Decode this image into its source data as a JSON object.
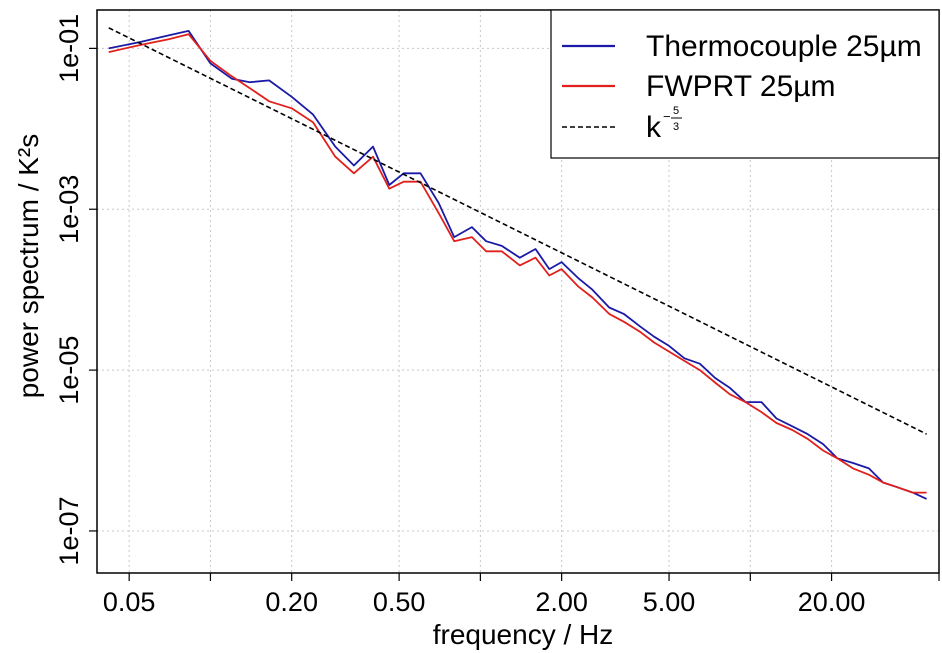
{
  "chart_data": {
    "type": "line",
    "xlabel": "frequency / Hz",
    "ylabel": "power spectrum / K²s",
    "x_scale": "log",
    "y_scale": "log",
    "xlim": [
      0.038,
      50
    ],
    "ylim": [
      3e-08,
      0.3
    ],
    "x_ticks": [
      {
        "value": 0.05,
        "label": "0.05"
      },
      {
        "value": 0.1,
        "label": ""
      },
      {
        "value": 0.2,
        "label": "0.20"
      },
      {
        "value": 0.5,
        "label": "0.50"
      },
      {
        "value": 1,
        "label": ""
      },
      {
        "value": 2,
        "label": "2.00"
      },
      {
        "value": 5,
        "label": "5.00"
      },
      {
        "value": 10,
        "label": ""
      },
      {
        "value": 20,
        "label": "20.00"
      },
      {
        "value": 50,
        "label": ""
      }
    ],
    "y_ticks": [
      {
        "value": 1e-07,
        "label": "1e-07"
      },
      {
        "value": 1e-05,
        "label": "1e-05"
      },
      {
        "value": 0.001,
        "label": "1e-03"
      },
      {
        "value": 0.1,
        "label": "1e-01"
      }
    ],
    "grid": true,
    "legend_position": "top-right",
    "legend_entries": [
      {
        "label": "Thermocouple 25µm",
        "color": "#1a1aa6",
        "style": "solid"
      },
      {
        "label": "FWPRT 25µm",
        "color": "#e0201c",
        "style": "solid"
      },
      {
        "label": "k",
        "exponent_num": "5",
        "exponent_den": "3",
        "color": "#000000",
        "style": "dashed"
      }
    ],
    "series": [
      {
        "name": "Thermocouple 25µm",
        "color": "#1a1aa6",
        "x": [
          0.042,
          0.055,
          0.07,
          0.083,
          0.1,
          0.12,
          0.14,
          0.165,
          0.2,
          0.24,
          0.29,
          0.34,
          0.4,
          0.46,
          0.52,
          0.6,
          0.7,
          0.8,
          0.93,
          1.05,
          1.2,
          1.4,
          1.6,
          1.8,
          2.0,
          2.3,
          2.6,
          3.0,
          3.4,
          3.9,
          4.4,
          5.0,
          5.7,
          6.5,
          7.4,
          8.4,
          9.6,
          11,
          12.5,
          14.3,
          16.3,
          18.6,
          21,
          24,
          27.5,
          31,
          35,
          40,
          45
        ],
        "y": [
          0.1,
          0.12,
          0.145,
          0.165,
          0.065,
          0.042,
          0.038,
          0.04,
          0.025,
          0.015,
          0.006,
          0.0035,
          0.006,
          0.002,
          0.0028,
          0.0028,
          0.0012,
          0.00045,
          0.0006,
          0.0004,
          0.00035,
          0.00025,
          0.00032,
          0.00018,
          0.00022,
          0.00014,
          0.0001,
          6e-05,
          5e-05,
          3.5e-05,
          2.6e-05,
          2e-05,
          1.4e-05,
          1.2e-05,
          8e-06,
          6e-06,
          4e-06,
          4e-06,
          2.5e-06,
          2e-06,
          1.6e-06,
          1.2e-06,
          8e-07,
          7e-07,
          6e-07,
          4e-07,
          3.5e-07,
          3e-07,
          2.5e-07
        ]
      },
      {
        "name": "FWPRT 25µm",
        "color": "#e0201c",
        "x": [
          0.042,
          0.055,
          0.07,
          0.083,
          0.1,
          0.12,
          0.14,
          0.165,
          0.2,
          0.24,
          0.29,
          0.34,
          0.4,
          0.46,
          0.52,
          0.6,
          0.7,
          0.8,
          0.93,
          1.05,
          1.2,
          1.4,
          1.6,
          1.8,
          2.0,
          2.3,
          2.6,
          3.0,
          3.4,
          3.9,
          4.4,
          5.0,
          5.7,
          6.5,
          7.4,
          8.4,
          9.6,
          11,
          12.5,
          14.3,
          16.3,
          18.6,
          21,
          24,
          27.5,
          31,
          35,
          40,
          45
        ],
        "y": [
          0.09,
          0.11,
          0.13,
          0.15,
          0.07,
          0.045,
          0.032,
          0.022,
          0.018,
          0.012,
          0.0045,
          0.0028,
          0.0045,
          0.0018,
          0.0022,
          0.0022,
          0.0009,
          0.0004,
          0.00045,
          0.0003,
          0.0003,
          0.0002,
          0.00025,
          0.00015,
          0.00018,
          0.00011,
          8e-05,
          5e-05,
          4e-05,
          3e-05,
          2.2e-05,
          1.7e-05,
          1.3e-05,
          1e-05,
          7e-06,
          5e-06,
          4e-06,
          3e-06,
          2.2e-06,
          1.8e-06,
          1.4e-06,
          1e-06,
          8e-07,
          6e-07,
          5e-07,
          4e-07,
          3.5e-07,
          3e-07,
          3e-07
        ]
      },
      {
        "name": "k^-5/3",
        "color": "#000000",
        "style": "dashed",
        "x": [
          0.042,
          45
        ],
        "y": [
          0.18,
          1.6e-06
        ]
      }
    ]
  }
}
